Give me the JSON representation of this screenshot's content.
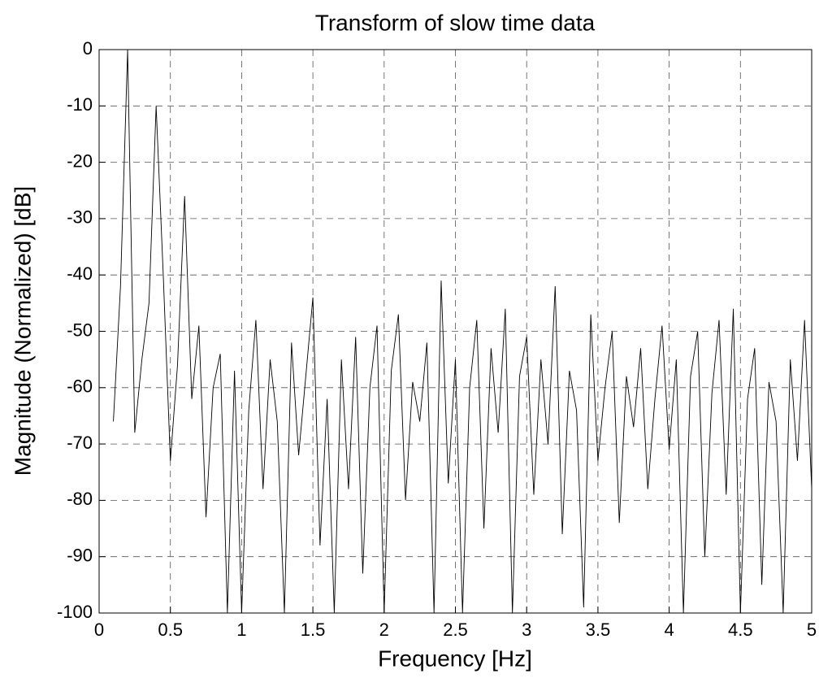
{
  "chart_data": {
    "type": "line",
    "title": "Transform of slow time data",
    "xlabel": "Frequency [Hz]",
    "ylabel": "Magnitude (Normalized) [dB]",
    "xlim": [
      0,
      5
    ],
    "ylim": [
      -100,
      0
    ],
    "xticks": [
      0,
      0.5,
      1,
      1.5,
      2,
      2.5,
      3,
      3.5,
      4,
      4.5,
      5
    ],
    "yticks": [
      0,
      -10,
      -20,
      -30,
      -40,
      -50,
      -60,
      -70,
      -80,
      -90,
      -100
    ],
    "grid": true,
    "x": [
      0.1,
      0.15,
      0.2,
      0.25,
      0.3,
      0.35,
      0.4,
      0.45,
      0.5,
      0.55,
      0.6,
      0.65,
      0.7,
      0.75,
      0.8,
      0.85,
      0.9,
      0.95,
      1.0,
      1.05,
      1.1,
      1.15,
      1.2,
      1.25,
      1.3,
      1.35,
      1.4,
      1.45,
      1.5,
      1.55,
      1.6,
      1.65,
      1.7,
      1.75,
      1.8,
      1.85,
      1.9,
      1.95,
      2.0,
      2.05,
      2.1,
      2.15,
      2.2,
      2.25,
      2.3,
      2.35,
      2.4,
      2.45,
      2.5,
      2.55,
      2.6,
      2.65,
      2.7,
      2.75,
      2.8,
      2.85,
      2.9,
      2.95,
      3.0,
      3.05,
      3.1,
      3.15,
      3.2,
      3.25,
      3.3,
      3.35,
      3.4,
      3.45,
      3.5,
      3.55,
      3.6,
      3.65,
      3.7,
      3.75,
      3.8,
      3.85,
      3.9,
      3.95,
      4.0,
      4.05,
      4.1,
      4.15,
      4.2,
      4.25,
      4.3,
      4.35,
      4.4,
      4.45,
      4.5,
      4.55,
      4.6,
      4.65,
      4.7,
      4.75,
      4.8,
      4.85,
      4.9,
      4.95,
      5.0
    ],
    "series": [
      {
        "color": "#000000",
        "values": [
          -66,
          -42,
          0,
          -68,
          -55,
          -45,
          -10,
          -40,
          -73,
          -56,
          -26,
          -62,
          -49,
          -83,
          -60,
          -54,
          -100,
          -57,
          -100,
          -64,
          -48,
          -78,
          -55,
          -66,
          -100,
          -52,
          -72,
          -58,
          -44,
          -88,
          -62,
          -100,
          -55,
          -78,
          -51,
          -93,
          -60,
          -49,
          -100,
          -57,
          -47,
          -80,
          -59,
          -66,
          -52,
          -100,
          -41,
          -77,
          -55,
          -100,
          -60,
          -48,
          -85,
          -53,
          -68,
          -46,
          -100,
          -58,
          -51,
          -79,
          -55,
          -70,
          -42,
          -86,
          -57,
          -64,
          -99,
          -47,
          -73,
          -60,
          -50,
          -84,
          -58,
          -67,
          -53,
          -78,
          -62,
          -49,
          -71,
          -55,
          -100,
          -58,
          -50,
          -90,
          -61,
          -48,
          -79,
          -46,
          -100,
          -62,
          -53,
          -95,
          -59,
          -66,
          -100,
          -55,
          -73,
          -48,
          -78
        ]
      }
    ]
  }
}
